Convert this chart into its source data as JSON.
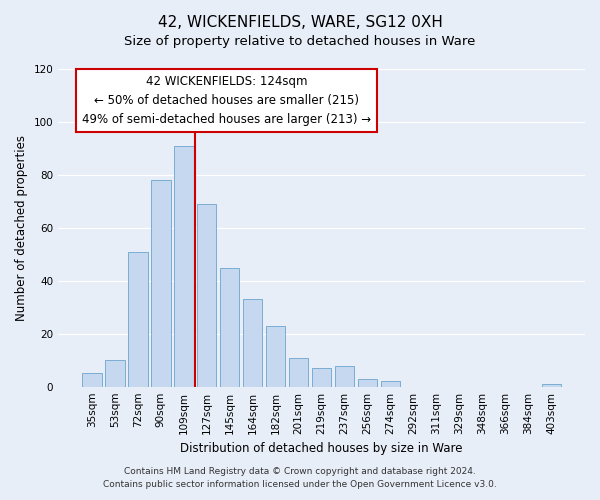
{
  "title": "42, WICKENFIELDS, WARE, SG12 0XH",
  "subtitle": "Size of property relative to detached houses in Ware",
  "xlabel": "Distribution of detached houses by size in Ware",
  "ylabel": "Number of detached properties",
  "bar_labels": [
    "35sqm",
    "53sqm",
    "72sqm",
    "90sqm",
    "109sqm",
    "127sqm",
    "145sqm",
    "164sqm",
    "182sqm",
    "201sqm",
    "219sqm",
    "237sqm",
    "256sqm",
    "274sqm",
    "292sqm",
    "311sqm",
    "329sqm",
    "348sqm",
    "366sqm",
    "384sqm",
    "403sqm"
  ],
  "bar_values": [
    5,
    10,
    51,
    78,
    91,
    69,
    45,
    33,
    23,
    11,
    7,
    8,
    3,
    2,
    0,
    0,
    0,
    0,
    0,
    0,
    1
  ],
  "bar_color": "#c5d8f0",
  "bar_edge_color": "#7aadd4",
  "vline_x": 4.5,
  "vline_color": "#cc0000",
  "ylim": [
    0,
    120
  ],
  "yticks": [
    0,
    20,
    40,
    60,
    80,
    100,
    120
  ],
  "annotation_title": "42 WICKENFIELDS: 124sqm",
  "annotation_line1": "← 50% of detached houses are smaller (215)",
  "annotation_line2": "49% of semi-detached houses are larger (213) →",
  "footer1": "Contains HM Land Registry data © Crown copyright and database right 2024.",
  "footer2": "Contains public sector information licensed under the Open Government Licence v3.0.",
  "background_color": "#e8eef8",
  "plot_background": "#e8eef8",
  "grid_color": "#ffffff",
  "title_fontsize": 11,
  "subtitle_fontsize": 9.5,
  "annotation_fontsize": 8.5,
  "axis_label_fontsize": 8.5,
  "tick_fontsize": 7.5,
  "footer_fontsize": 6.5
}
